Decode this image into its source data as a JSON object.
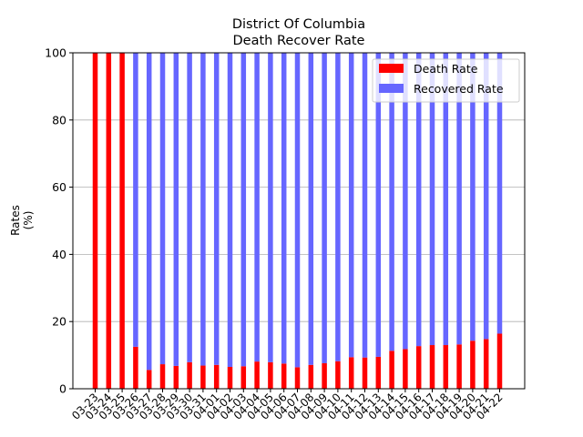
{
  "chart_data": {
    "type": "bar",
    "stacked": true,
    "title_line1": "District Of Columbia",
    "title_line2": "Death Recover Rate",
    "ylabel_line1": "Rates",
    "ylabel_line2": "(%)",
    "xlabel": "",
    "ylim": [
      0,
      100
    ],
    "yticks": [
      0,
      20,
      40,
      60,
      80,
      100
    ],
    "grid": "y",
    "legend_position": "top-right",
    "categories": [
      "03-23",
      "03-24",
      "03-25",
      "03-26",
      "03-27",
      "03-28",
      "03-29",
      "03-30",
      "03-31",
      "04-01",
      "04-02",
      "04-03",
      "04-04",
      "04-05",
      "04-06",
      "04-07",
      "04-08",
      "04-09",
      "04-10",
      "04-11",
      "04-12",
      "04-13",
      "04-14",
      "04-15",
      "04-16",
      "04-17",
      "04-18",
      "04-19",
      "04-20",
      "04-21",
      "04-22"
    ],
    "series": [
      {
        "name": "Death Rate",
        "color": "#ff0000",
        "values": [
          100,
          100,
          100,
          12.5,
          5.6,
          7.3,
          6.8,
          7.9,
          6.9,
          7.1,
          6.5,
          6.7,
          8.1,
          7.9,
          7.5,
          6.4,
          7.1,
          7.6,
          8.2,
          9.4,
          9.3,
          9.5,
          11.3,
          11.8,
          12.7,
          13.0,
          13.0,
          13.2,
          14.3,
          14.8,
          16.4
        ]
      },
      {
        "name": "Recovered Rate",
        "color": "#6666ff",
        "values": [
          0,
          0,
          0,
          87.5,
          94.4,
          92.7,
          93.2,
          92.1,
          93.1,
          92.9,
          93.5,
          93.3,
          91.9,
          92.1,
          92.5,
          93.6,
          92.9,
          92.4,
          91.8,
          90.6,
          90.7,
          90.5,
          88.7,
          88.2,
          87.3,
          87.0,
          87.0,
          86.8,
          85.7,
          85.2,
          83.6
        ]
      }
    ]
  }
}
